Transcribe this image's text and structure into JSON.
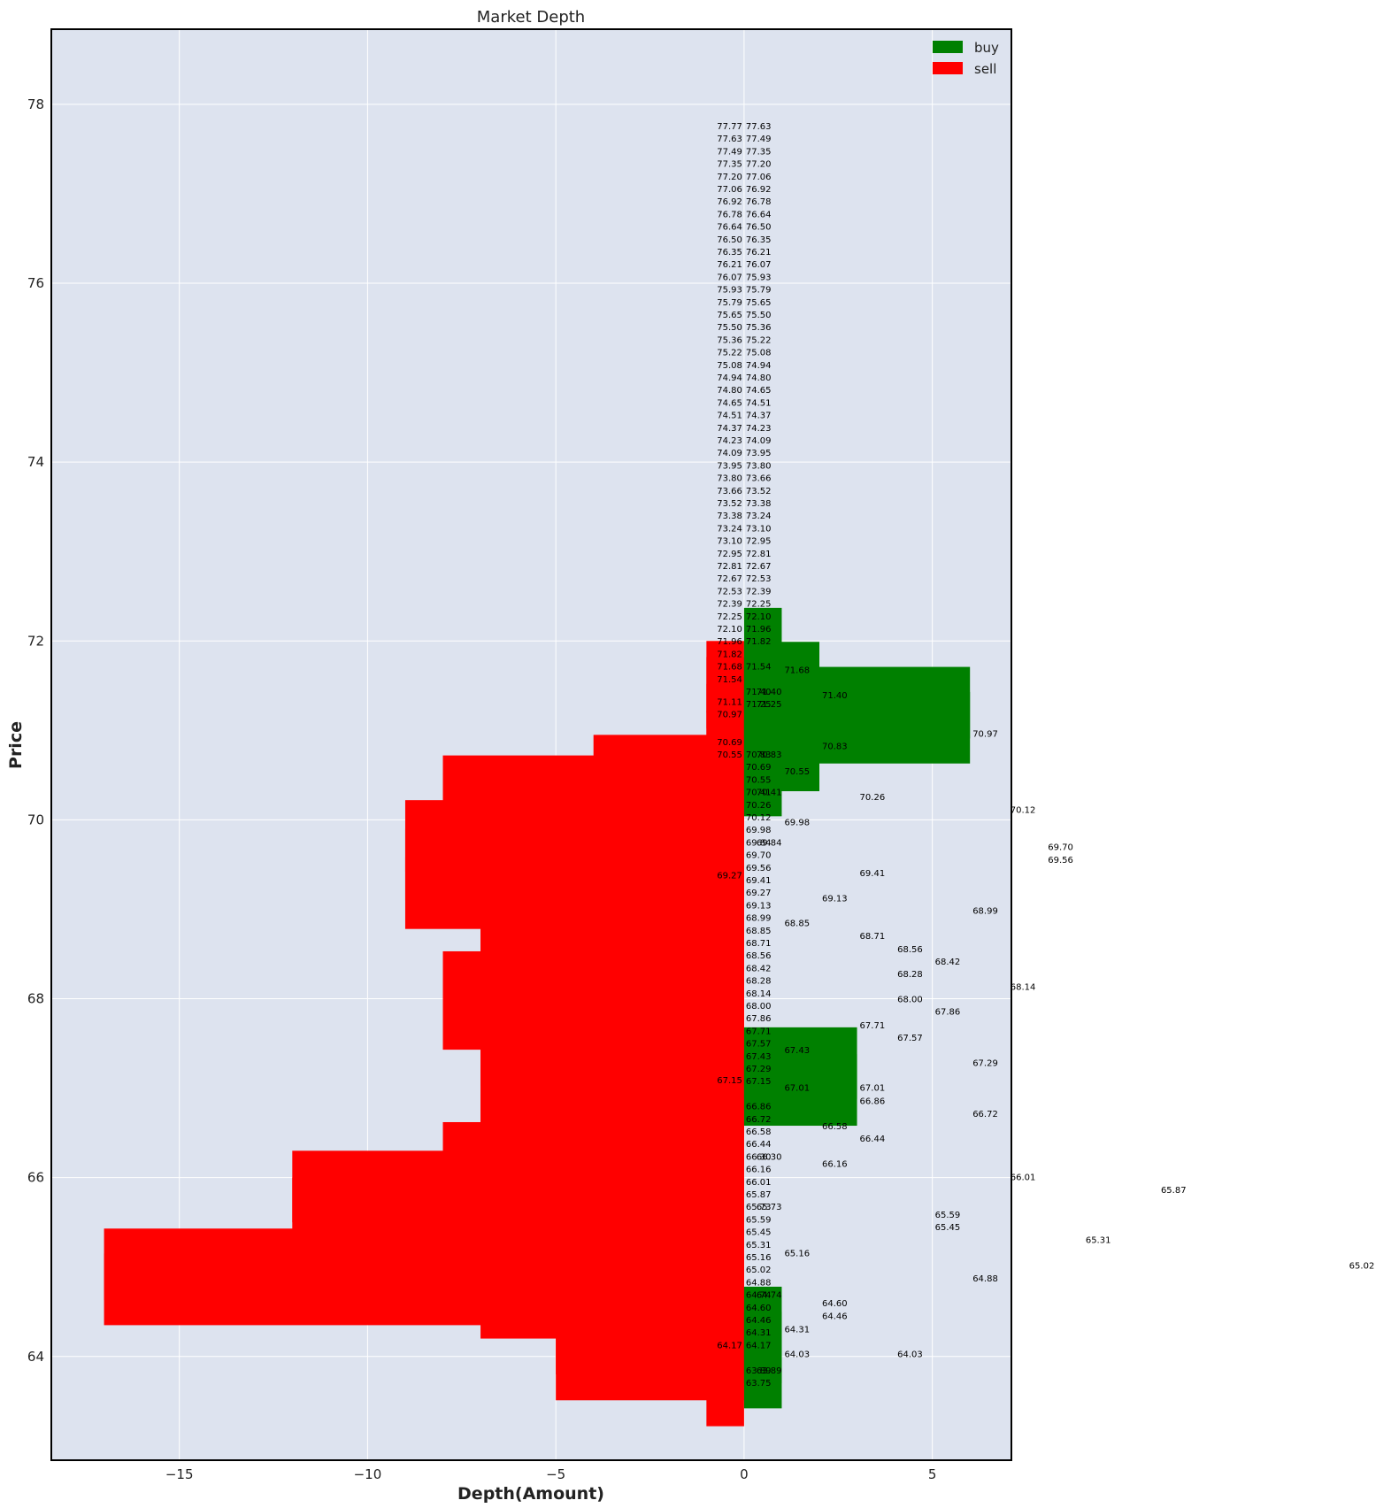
{
  "chart_data": {
    "type": "bar",
    "orientation": "horizontal",
    "title": "Market Depth",
    "xlabel": "Depth(Amount)",
    "ylabel": "Price",
    "xlim": [
      -18.4,
      7.1
    ],
    "ylim": [
      62.84,
      78.84
    ],
    "xticks": [
      -15,
      -10,
      -5,
      0,
      5
    ],
    "xticklabels": [
      "−15",
      "−10",
      "−5",
      "0",
      "5"
    ],
    "yticks": [
      64,
      66,
      68,
      70,
      72,
      74,
      76,
      78
    ],
    "grid": true,
    "legend_position": "top-right",
    "colors": {
      "buy": "#008000",
      "sell": "#ff0000",
      "plot_bg": "#dde3ef",
      "grid": "#ffffff",
      "frame": "#000000"
    },
    "series": [
      {
        "name": "buy",
        "color": "#008000",
        "bars": [
          {
            "price": 63.82,
            "amount": 1
          },
          {
            "price": 64.1,
            "amount": 1
          },
          {
            "price": 64.38,
            "amount": 1
          },
          {
            "price": 66.98,
            "amount": 3
          },
          {
            "price": 67.28,
            "amount": 3
          },
          {
            "price": 70.44,
            "amount": 1
          },
          {
            "price": 70.72,
            "amount": 2
          },
          {
            "price": 71.03,
            "amount": 6
          },
          {
            "price": 71.31,
            "amount": 6
          },
          {
            "price": 71.59,
            "amount": 2
          },
          {
            "price": 71.97,
            "amount": 1
          }
        ]
      },
      {
        "name": "sell",
        "color": "#ff0000",
        "bars": [
          {
            "price": 63.62,
            "amount": -1
          },
          {
            "price": 63.91,
            "amount": -5
          },
          {
            "price": 64.2,
            "amount": -5
          },
          {
            "price": 64.48,
            "amount": -3
          },
          {
            "price": 64.6,
            "amount": -7
          },
          {
            "price": 64.75,
            "amount": -17
          },
          {
            "price": 65.03,
            "amount": -17
          },
          {
            "price": 65.35,
            "amount": -10
          },
          {
            "price": 65.6,
            "amount": -12
          },
          {
            "price": 65.9,
            "amount": -12
          },
          {
            "price": 66.22,
            "amount": -8
          },
          {
            "price": 66.53,
            "amount": -7
          },
          {
            "price": 66.85,
            "amount": -7
          },
          {
            "price": 67.15,
            "amount": -7
          },
          {
            "price": 67.43,
            "amount": -7
          },
          {
            "price": 67.7,
            "amount": -6
          },
          {
            "price": 67.83,
            "amount": -8
          },
          {
            "price": 68.13,
            "amount": -8
          },
          {
            "price": 68.42,
            "amount": -6
          },
          {
            "price": 68.7,
            "amount": -7
          },
          {
            "price": 68.93,
            "amount": -7
          },
          {
            "price": 69.18,
            "amount": -9
          },
          {
            "price": 69.5,
            "amount": -9
          },
          {
            "price": 69.82,
            "amount": -9
          },
          {
            "price": 70.12,
            "amount": -8
          },
          {
            "price": 70.32,
            "amount": -8
          },
          {
            "price": 70.55,
            "amount": -4
          },
          {
            "price": 70.82,
            "amount": -1
          },
          {
            "price": 71.12,
            "amount": -1
          },
          {
            "price": 71.42,
            "amount": -1
          },
          {
            "price": 71.6,
            "amount": -1
          }
        ]
      }
    ],
    "annotations_left": [
      "77.77",
      "77.63",
      "77.49",
      "77.35",
      "77.20",
      "77.06",
      "76.92",
      "76.78",
      "76.64",
      "76.50",
      "76.35",
      "76.21",
      "76.07",
      "75.93",
      "75.79",
      "75.65",
      "75.50",
      "75.36",
      "75.22",
      "75.08",
      "74.94",
      "74.80",
      "74.65",
      "74.51",
      "74.37",
      "74.23",
      "74.09",
      "73.95",
      "73.80",
      "73.66",
      "73.52",
      "73.38",
      "73.24",
      "73.10",
      "72.95",
      "72.81",
      "72.67",
      "72.53",
      "72.39",
      "72.25",
      "72.10",
      "71.96",
      "71.82",
      "71.68",
      "71.54"
    ],
    "annotations_center": [
      "77.63",
      "77.49",
      "77.35",
      "77.20",
      "77.06",
      "76.92",
      "76.78",
      "76.64",
      "76.50",
      "76.35",
      "76.21",
      "76.07",
      "75.93",
      "75.79",
      "75.65",
      "75.50",
      "75.36",
      "75.22",
      "75.08",
      "74.94",
      "74.80",
      "74.65",
      "74.51",
      "74.37",
      "74.23",
      "74.09",
      "73.95",
      "73.80",
      "73.66",
      "73.52",
      "73.38",
      "73.24",
      "73.10",
      "72.95",
      "72.81",
      "72.67",
      "72.53",
      "72.39",
      "72.25",
      "72.10",
      "71.96",
      "71.82",
      null,
      "71.54",
      null,
      "71.40",
      "71.25",
      null,
      null,
      null,
      "70.83",
      "70.69",
      "70.55",
      "70.41",
      "70.26",
      "70.12",
      "69.98",
      "69.84",
      "69.70",
      "69.56",
      "69.41",
      "69.27",
      "69.13",
      "68.99",
      "68.85",
      "68.71",
      "68.56",
      "68.42",
      "68.28",
      "68.14",
      "68.00",
      "67.86",
      "67.71",
      "67.57",
      "67.43",
      "67.29",
      "67.15",
      null,
      "66.86",
      "66.72",
      "66.58",
      "66.44",
      "66.30",
      "66.16",
      "66.01",
      "65.87",
      "65.73",
      "65.59",
      "65.45",
      "65.31",
      "65.16",
      "65.02",
      "64.88",
      "64.74",
      "64.60",
      "64.46",
      "64.31",
      "64.17",
      null,
      "63.89",
      "63.75"
    ],
    "annotations_center_overlap": [
      "71.40",
      "71.25",
      "70.83",
      "70.41",
      "69.84",
      "66.30",
      "65.73",
      "64.74",
      "63.89"
    ],
    "annotations_left_extra": [
      {
        "v": "71.11",
        "row": 45.8
      },
      {
        "v": "70.97",
        "row": 46.8
      },
      {
        "v": "70.69",
        "row": 49
      },
      {
        "v": "70.55",
        "row": 50
      },
      {
        "v": "69.27",
        "row": 59.6
      },
      {
        "v": "67.15",
        "row": 75.9
      },
      {
        "v": "64.17",
        "row": 97
      }
    ],
    "annotations_amount": [
      {
        "v": "71.68",
        "amt": 1
      },
      {
        "v": "71.40",
        "amt": 2
      },
      {
        "v": "70.97",
        "amt": 6
      },
      {
        "v": "70.83",
        "amt": 2
      },
      {
        "v": "70.55",
        "amt": 1
      },
      {
        "v": "70.26",
        "amt": 3
      },
      {
        "v": "70.12",
        "amt": 7
      },
      {
        "v": "69.98",
        "amt": 1
      },
      {
        "v": "69.70",
        "amt": 8
      },
      {
        "v": "69.56",
        "amt": 8
      },
      {
        "v": "69.41",
        "amt": 3
      },
      {
        "v": "69.13",
        "amt": 2
      },
      {
        "v": "68.99",
        "amt": 6
      },
      {
        "v": "68.85",
        "amt": 1
      },
      {
        "v": "68.71",
        "amt": 3
      },
      {
        "v": "68.56",
        "amt": 4
      },
      {
        "v": "68.42",
        "amt": 5
      },
      {
        "v": "68.28",
        "amt": 4
      },
      {
        "v": "68.14",
        "amt": 7
      },
      {
        "v": "68.00",
        "amt": 4
      },
      {
        "v": "67.86",
        "amt": 5
      },
      {
        "v": "67.71",
        "amt": 3
      },
      {
        "v": "67.57",
        "amt": 4
      },
      {
        "v": "67.43",
        "amt": 1
      },
      {
        "v": "67.29",
        "amt": 6
      },
      {
        "v": "67.01",
        "amt": 3
      },
      {
        "v": "67.01",
        "amt": 1
      },
      {
        "v": "66.86",
        "amt": 3
      },
      {
        "v": "66.72",
        "amt": 6
      },
      {
        "v": "66.58",
        "amt": 2
      },
      {
        "v": "66.44",
        "amt": 3
      },
      {
        "v": "66.16",
        "amt": 2
      },
      {
        "v": "66.01",
        "amt": 7
      },
      {
        "v": "65.87",
        "amt": 11
      },
      {
        "v": "65.59",
        "amt": 5
      },
      {
        "v": "65.45",
        "amt": 5
      },
      {
        "v": "65.31",
        "amt": 9
      },
      {
        "v": "65.16",
        "amt": 1
      },
      {
        "v": "65.02",
        "amt": 16
      },
      {
        "v": "64.88",
        "amt": 6
      },
      {
        "v": "64.60",
        "amt": 2
      },
      {
        "v": "64.46",
        "amt": 2
      },
      {
        "v": "64.31",
        "amt": 1
      },
      {
        "v": "64.03",
        "amt": 1
      },
      {
        "v": "64.03",
        "amt": 4
      }
    ]
  }
}
